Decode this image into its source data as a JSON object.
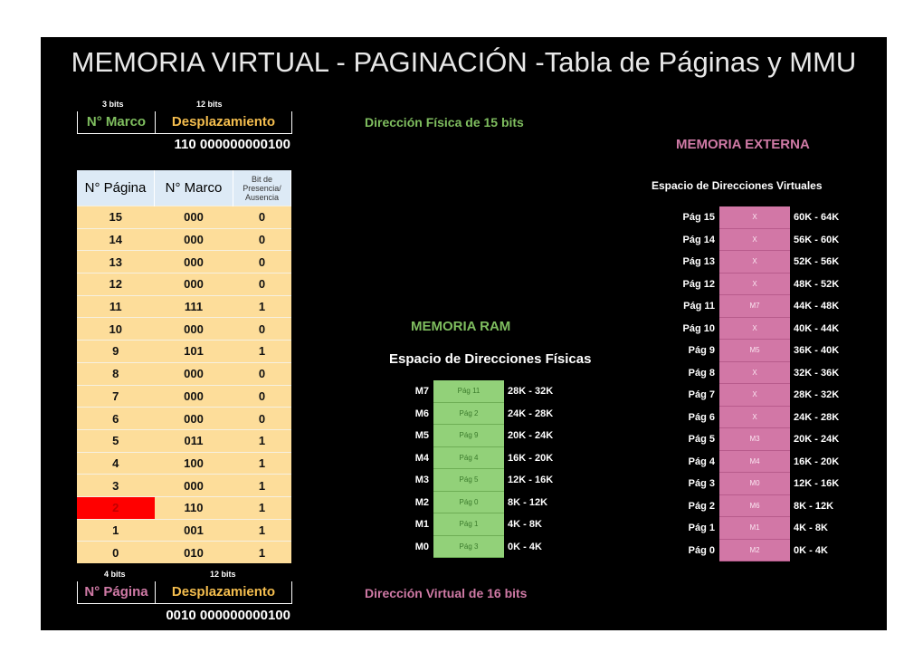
{
  "title": "MEMORIA VIRTUAL - PAGINACIÓN -Tabla de Páginas y MMU",
  "physical_address": {
    "bits_frame": "3 bits",
    "bits_offset": "12 bits",
    "frame_label": "N° Marco",
    "offset_label": "Desplazamiento",
    "value": "110 000000000100",
    "caption": "Dirección Física de 15 bits"
  },
  "page_table": {
    "headers": [
      "N° Página",
      "N° Marco",
      "Bit de Presencia/ Ausencia"
    ],
    "rows": [
      [
        "15",
        "000",
        "0"
      ],
      [
        "14",
        "000",
        "0"
      ],
      [
        "13",
        "000",
        "0"
      ],
      [
        "12",
        "000",
        "0"
      ],
      [
        "11",
        "111",
        "1"
      ],
      [
        "10",
        "000",
        "0"
      ],
      [
        "9",
        "101",
        "1"
      ],
      [
        "8",
        "000",
        "0"
      ],
      [
        "7",
        "000",
        "0"
      ],
      [
        "6",
        "000",
        "0"
      ],
      [
        "5",
        "011",
        "1"
      ],
      [
        "4",
        "100",
        "1"
      ],
      [
        "3",
        "000",
        "1"
      ],
      [
        "2",
        "110",
        "1"
      ],
      [
        "1",
        "001",
        "1"
      ],
      [
        "0",
        "010",
        "1"
      ]
    ],
    "highlight_row_page": "2"
  },
  "virtual_address": {
    "bits_page": "4 bits",
    "bits_offset": "12 bits",
    "page_label": "N° Página",
    "offset_label": "Desplazamiento",
    "value": "0010 000000000100",
    "caption": "Dirección Virtual de 16 bits"
  },
  "ram": {
    "title": "MEMORIA RAM",
    "subtitle": "Espacio de Direcciones Físicas",
    "frames": [
      {
        "label": "M7",
        "content": "Pág 11",
        "range": "28K - 32K"
      },
      {
        "label": "M6",
        "content": "Pág 2",
        "range": "24K - 28K"
      },
      {
        "label": "M5",
        "content": "Pág 9",
        "range": "20K - 24K"
      },
      {
        "label": "M4",
        "content": "Pág 4",
        "range": "16K - 20K"
      },
      {
        "label": "M3",
        "content": "Pág 5",
        "range": "12K - 16K"
      },
      {
        "label": "M2",
        "content": "Pág 0",
        "range": "8K - 12K"
      },
      {
        "label": "M1",
        "content": "Pág 1",
        "range": "4K - 8K"
      },
      {
        "label": "M0",
        "content": "Pág 3",
        "range": "0K - 4K"
      }
    ]
  },
  "external": {
    "title": "MEMORIA EXTERNA",
    "subtitle": "Espacio de Direcciones Virtuales",
    "pages": [
      {
        "label": "Pág 15",
        "content": "X",
        "range": "60K - 64K"
      },
      {
        "label": "Pág 14",
        "content": "X",
        "range": "56K - 60K"
      },
      {
        "label": "Pág 13",
        "content": "X",
        "range": "52K - 56K"
      },
      {
        "label": "Pág 12",
        "content": "X",
        "range": "48K - 52K"
      },
      {
        "label": "Pág 11",
        "content": "M7",
        "range": "44K - 48K"
      },
      {
        "label": "Pág 10",
        "content": "X",
        "range": "40K - 44K"
      },
      {
        "label": "Pág 9",
        "content": "M5",
        "range": "36K - 40K"
      },
      {
        "label": "Pág 8",
        "content": "X",
        "range": "32K - 36K"
      },
      {
        "label": "Pág 7",
        "content": "X",
        "range": "28K - 32K"
      },
      {
        "label": "Pág 6",
        "content": "X",
        "range": "24K - 28K"
      },
      {
        "label": "Pág 5",
        "content": "M3",
        "range": "20K - 24K"
      },
      {
        "label": "Pág 4",
        "content": "M4",
        "range": "16K - 20K"
      },
      {
        "label": "Pág 3",
        "content": "M0",
        "range": "12K - 16K"
      },
      {
        "label": "Pág 2",
        "content": "M6",
        "range": "8K - 12K"
      },
      {
        "label": "Pág 1",
        "content": "M1",
        "range": "4K - 8K"
      },
      {
        "label": "Pág 0",
        "content": "M2",
        "range": "0K - 4K"
      }
    ]
  },
  "colors": {
    "green": "#7fbe5f",
    "pink": "#d07aa6",
    "orange": "#f5be4e",
    "table_fill": "#fddd9a",
    "table_header": "#ddeaf6",
    "highlight": "#ff0000",
    "ram_fill": "#92d179",
    "external_fill": "#d277a6"
  }
}
